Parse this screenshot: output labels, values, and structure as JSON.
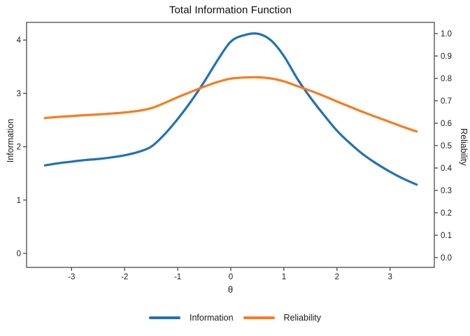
{
  "chart": {
    "title": "Total Information Function",
    "xlabel": "θ",
    "ylabel_left": "Information",
    "ylabel_right": "Reliability"
  },
  "chart_data": {
    "type": "line",
    "title": "Total Information Function",
    "xlabel": "θ",
    "ylabel_left": "Information",
    "ylabel_right": "Reliability",
    "grid": false,
    "legend_position": "bottom",
    "frame_color": "#3b3b3b",
    "x_range": [
      -3.5,
      3.5
    ],
    "y_left_range": [
      0,
      4
    ],
    "y_right_range": [
      0.0,
      1.0
    ],
    "x_ticks": {
      "values": [
        -3,
        -2,
        -1,
        0,
        1,
        2,
        3
      ],
      "labels": [
        "-3",
        "-2",
        "-1",
        "0",
        "1",
        "2",
        "3"
      ]
    },
    "y_left_ticks": {
      "values": [
        0,
        1,
        2,
        3,
        4
      ],
      "labels": [
        "0",
        "1",
        "2",
        "3",
        "4"
      ]
    },
    "y_right_ticks": {
      "values": [
        0.0,
        0.1,
        0.2,
        0.3,
        0.4,
        0.5,
        0.6,
        0.7,
        0.8,
        0.9,
        1.0
      ],
      "labels": [
        "0.0",
        "0.1",
        "0.2",
        "0.3",
        "0.4",
        "0.5",
        "0.6",
        "0.7",
        "0.8",
        "0.9",
        "1.0"
      ]
    },
    "x": [
      -3.5,
      -3.25,
      -3.0,
      -2.75,
      -2.5,
      -2.25,
      -2.0,
      -1.75,
      -1.5,
      -1.25,
      -1.0,
      -0.75,
      -0.5,
      -0.25,
      0.0,
      0.25,
      0.5,
      0.75,
      1.0,
      1.25,
      1.5,
      1.75,
      2.0,
      2.25,
      2.5,
      2.75,
      3.0,
      3.25,
      3.5
    ],
    "series": [
      {
        "name": "Information",
        "axis": "left",
        "color": "#2171b5",
        "peak": {
          "theta": 0.42,
          "value": 4.12
        },
        "values": [
          1.65,
          1.69,
          1.72,
          1.75,
          1.77,
          1.8,
          1.84,
          1.9,
          2.0,
          2.23,
          2.52,
          2.85,
          3.22,
          3.62,
          3.97,
          4.09,
          4.12,
          4.0,
          3.7,
          3.28,
          2.92,
          2.6,
          2.3,
          2.06,
          1.85,
          1.68,
          1.53,
          1.4,
          1.29
        ]
      },
      {
        "name": "Reliability",
        "axis": "right",
        "color": "#f87c1e",
        "peak": {
          "theta": 0.42,
          "value": 0.805
        },
        "values": [
          0.623,
          0.628,
          0.632,
          0.636,
          0.639,
          0.643,
          0.648,
          0.655,
          0.667,
          0.69,
          0.716,
          0.74,
          0.763,
          0.784,
          0.799,
          0.804,
          0.805,
          0.8,
          0.787,
          0.766,
          0.745,
          0.722,
          0.697,
          0.673,
          0.649,
          0.627,
          0.605,
          0.583,
          0.563
        ]
      }
    ]
  }
}
